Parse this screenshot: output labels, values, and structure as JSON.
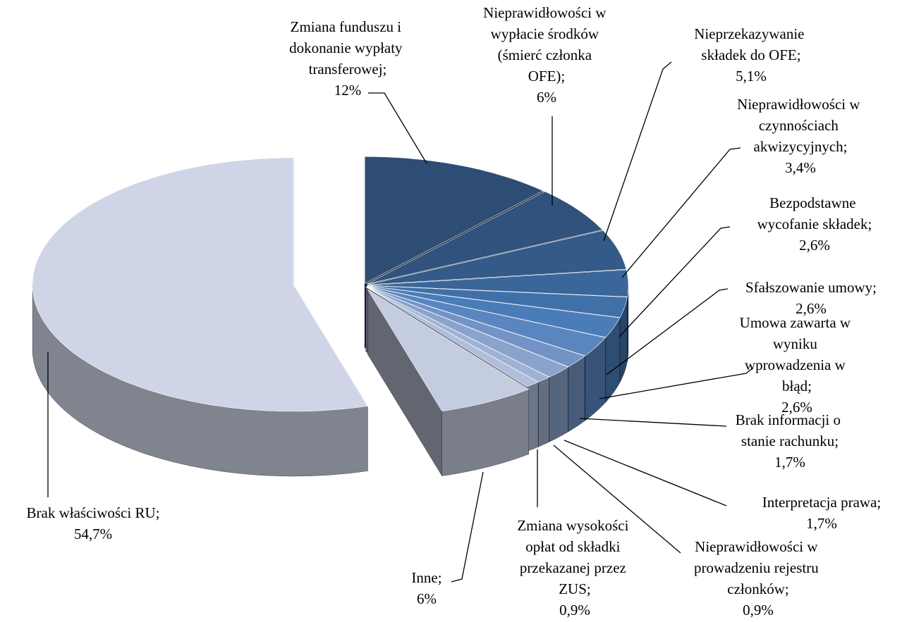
{
  "chart_data": {
    "type": "pie3d",
    "categories": [
      "Zmiana funduszu i dokonanie wypłaty transferowej;",
      "Nieprawidłowości w wypłacie środków (śmierć członka OFE);",
      "Nieprzekazywanie składek do OFE;",
      "Nieprawidłowości w czynnościach akwizycyjnych;",
      "Bezpodstawne wycofanie składek;",
      "Sfałszowanie umowy;",
      "Umowa zawarta w wyniku wprowadzenia w błąd;",
      "Brak informacji o stanie rachunku;",
      "Interpretacja prawa;",
      "Nieprawidłowości w prowadzeniu rejestru członków;",
      "Zmiana wysokości opłat od składki przekazanej przez ZUS;",
      "Inne;",
      "Brak właściwości RU;"
    ],
    "values": [
      12,
      6,
      5.1,
      3.4,
      2.6,
      2.6,
      2.6,
      1.7,
      1.7,
      0.9,
      0.9,
      6,
      54.7
    ],
    "value_labels": [
      "12%",
      "6%",
      "5,1%",
      "3,4%",
      "2,6%",
      "2,6%",
      "2,6%",
      "1,7%",
      "1,7%",
      "0,9%",
      "0,9%",
      "6%",
      "54,7%"
    ],
    "colors": [
      "#2e4d74",
      "#30527c",
      "#335a88",
      "#3a669a",
      "#4070a8",
      "#4a7cb8",
      "#5a86c0",
      "#7393c6",
      "#8aa3cc",
      "#a0b2d4",
      "#b0bedb",
      "#c4cce0",
      "#cfd5e7"
    ]
  }
}
